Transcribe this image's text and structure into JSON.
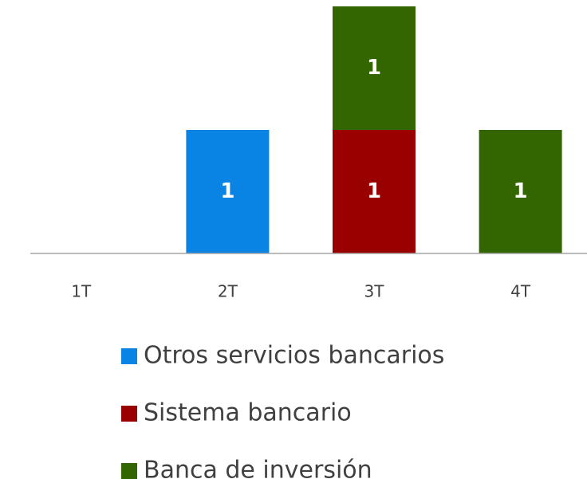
{
  "chart_data": {
    "type": "stacked_bar",
    "categories": [
      "1T",
      "2T",
      "3T",
      "4T"
    ],
    "series": [
      {
        "name": "Otros servicios bancarios",
        "color": "#0a84e4",
        "values": [
          null,
          1,
          null,
          null
        ]
      },
      {
        "name": "Sistema bancario",
        "color": "#990000",
        "values": [
          null,
          null,
          1,
          null
        ]
      },
      {
        "name": "Banca de inversión",
        "color": "#336600",
        "values": [
          null,
          null,
          1,
          1
        ]
      }
    ],
    "ylim": [
      0,
      2
    ],
    "legend": "bottom"
  }
}
